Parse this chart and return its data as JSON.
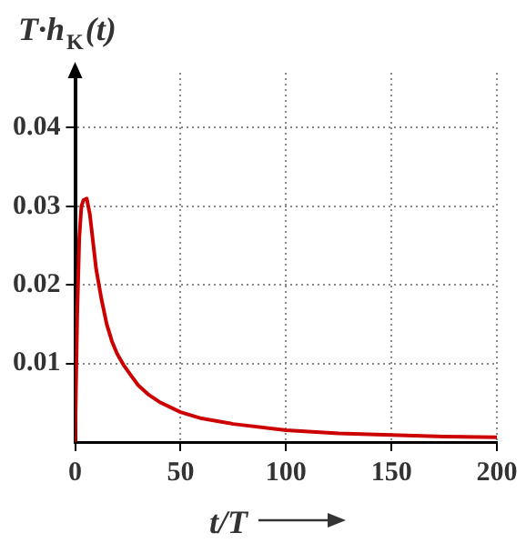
{
  "chart_data": {
    "type": "line",
    "xlabel": "t/T",
    "ylabel": "T·h$_{K}$(t)",
    "x": [
      0,
      1,
      2,
      3,
      4,
      5.5,
      7,
      8.5,
      10,
      12.5,
      15,
      17.5,
      20,
      23,
      27,
      30,
      35,
      40,
      50,
      60,
      75,
      100,
      125,
      150,
      175,
      200
    ],
    "series": [
      {
        "color": "#cc0000",
        "values": [
          0,
          0.016,
          0.026,
          0.03,
          0.0308,
          0.031,
          0.029,
          0.0255,
          0.022,
          0.0182,
          0.015,
          0.0128,
          0.0112,
          0.0098,
          0.0083,
          0.0072,
          0.006,
          0.0051,
          0.0038,
          0.003,
          0.0023,
          0.0015,
          0.0011,
          0.0009,
          0.0007,
          0.0006
        ]
      }
    ],
    "xlim": [
      0,
      200
    ],
    "xticks": [
      0,
      50,
      100,
      150,
      200
    ],
    "ylim": [
      0,
      0.047
    ],
    "yticks": [
      0.01,
      0.02,
      0.03,
      0.04
    ],
    "grid": true,
    "legend": false,
    "marker": "none",
    "line_style": "solid"
  }
}
